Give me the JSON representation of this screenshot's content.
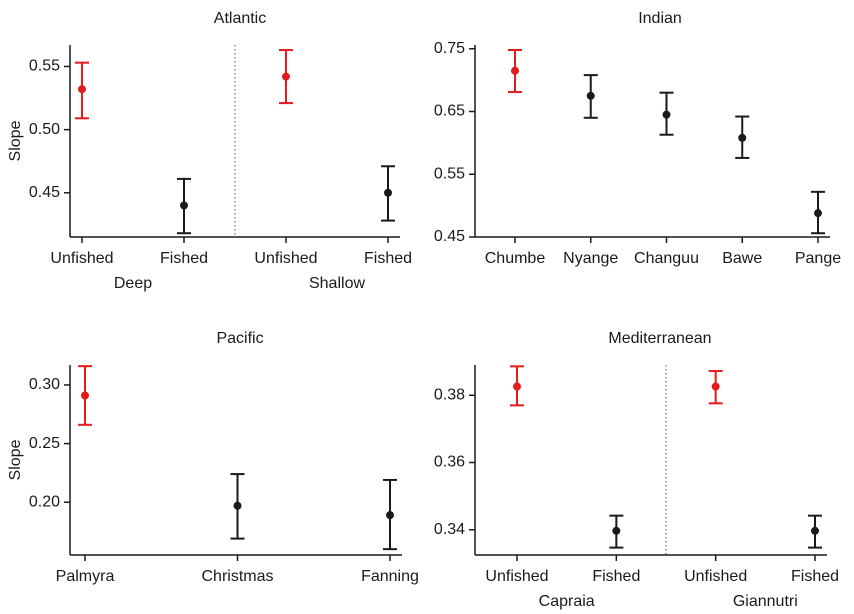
{
  "chart_data": [
    {
      "type": "errorbar",
      "title": "Atlantic",
      "ylabel": "Slope",
      "categories": [
        "Unfished",
        "Fished",
        "Unfished",
        "Fished"
      ],
      "groups": [
        "Deep",
        "Shallow"
      ],
      "values": [
        0.532,
        0.44,
        0.542,
        0.45
      ],
      "lower": [
        0.509,
        0.418,
        0.521,
        0.428
      ],
      "upper": [
        0.553,
        0.461,
        0.563,
        0.471
      ],
      "colors": [
        "#e41a1c",
        "#1a1a1a",
        "#e41a1c",
        "#1a1a1a"
      ],
      "ylim": [
        0.415,
        0.567
      ],
      "yticks": [
        0.45,
        {
          "value": 0.5,
          "label": "0.50"
        },
        0.55
      ]
    },
    {
      "type": "errorbar",
      "title": "Indian",
      "categories": [
        "Chumbe",
        "Nyange",
        "Changuu",
        "Bawe",
        "Pange"
      ],
      "values": [
        0.715,
        0.675,
        0.645,
        0.608,
        0.488
      ],
      "lower": [
        0.681,
        0.64,
        0.613,
        0.576,
        0.456
      ],
      "upper": [
        0.748,
        0.708,
        0.68,
        0.642,
        0.522
      ],
      "colors": [
        "#e41a1c",
        "#1a1a1a",
        "#1a1a1a",
        "#1a1a1a",
        "#1a1a1a"
      ],
      "ylim": [
        0.45,
        0.756
      ],
      "yticks": [
        0.45,
        0.55,
        0.65,
        0.75
      ]
    },
    {
      "type": "errorbar",
      "title": "Pacific",
      "ylabel": "Slope",
      "categories": [
        "Palmyra",
        "Christmas",
        "Fanning"
      ],
      "values": [
        0.291,
        0.197,
        0.189
      ],
      "lower": [
        0.266,
        0.169,
        0.16
      ],
      "upper": [
        0.316,
        0.224,
        0.219
      ],
      "colors": [
        "#e41a1c",
        "#1a1a1a",
        "#1a1a1a"
      ],
      "ylim": [
        0.155,
        0.317
      ],
      "yticks": [
        {
          "value": 0.2,
          "label": "0.20"
        },
        0.25,
        {
          "value": 0.3,
          "label": "0.30"
        }
      ]
    },
    {
      "type": "errorbar",
      "title": "Mediterranean",
      "categories": [
        "Unfished",
        "Fished",
        "Unfished",
        "Fished"
      ],
      "groups": [
        "Capraia",
        "Giannutri"
      ],
      "values": [
        0.3826,
        0.3397,
        0.3826,
        0.3397
      ],
      "lower": [
        0.377,
        0.3347,
        0.3776,
        0.3347
      ],
      "upper": [
        0.3886,
        0.3442,
        0.3872,
        0.3442
      ],
      "colors": [
        "#e41a1c",
        "#1a1a1a",
        "#e41a1c",
        "#1a1a1a"
      ],
      "ylim": [
        0.3325,
        0.389
      ],
      "yticks": [
        0.34,
        0.36,
        0.38
      ]
    }
  ]
}
